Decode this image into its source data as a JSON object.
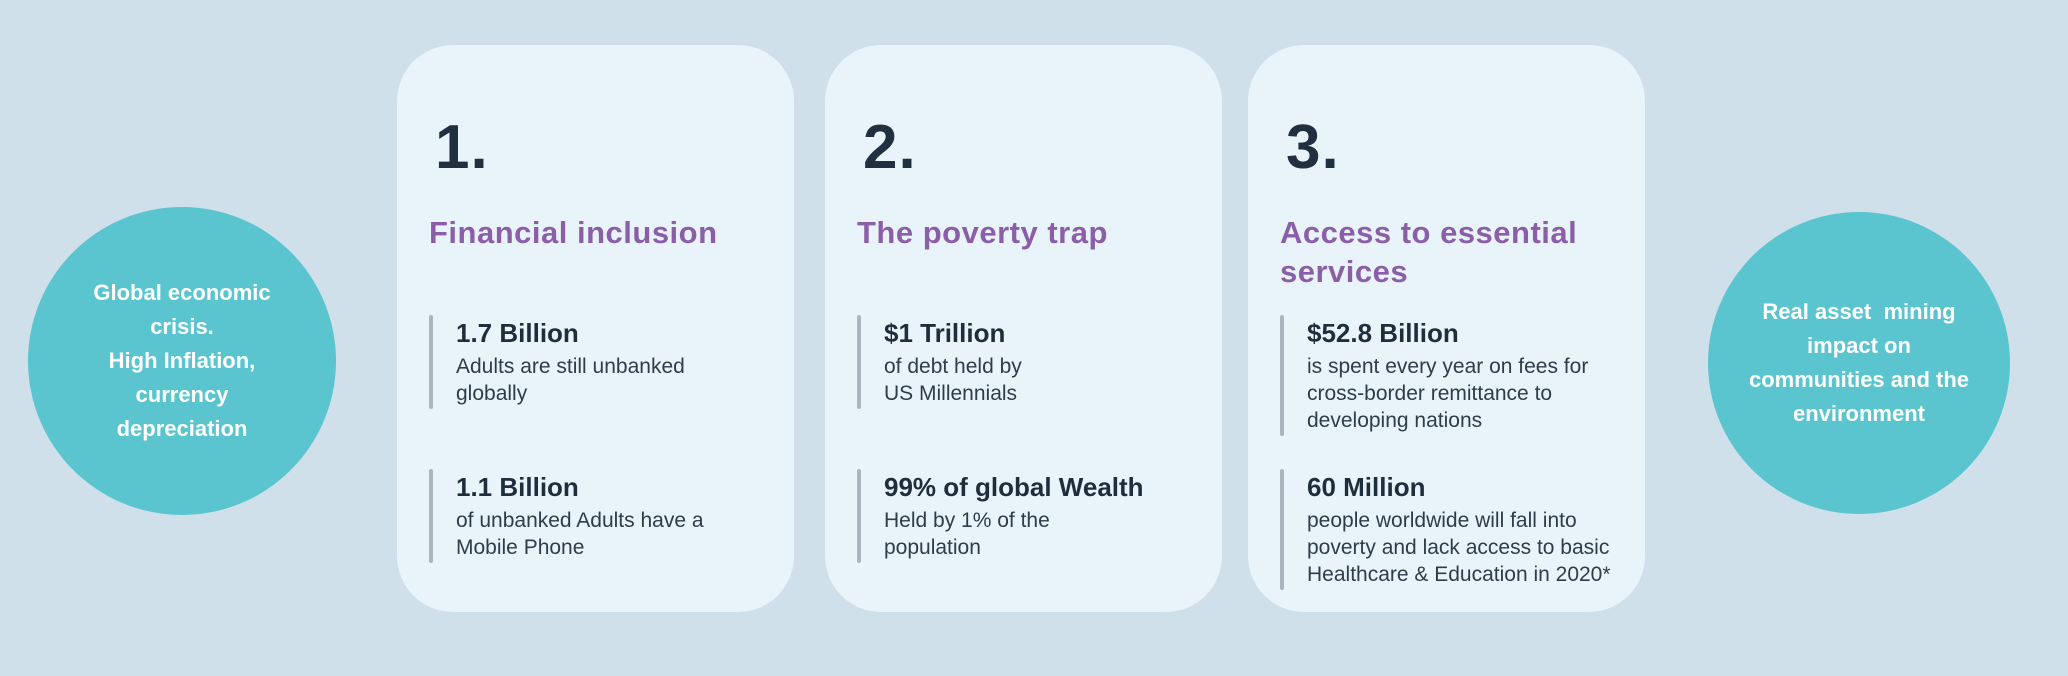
{
  "colors": {
    "page_background": "#cfe0eb",
    "card_background": "#e9f3fa",
    "circle_teal": "#5ac5cf",
    "heading_purple": "#8a5fa8",
    "text_navy": "#21303e",
    "stat_bar_gray": "#a9b6c0",
    "circle_text_white": "#ffffff"
  },
  "left_circle": {
    "text": "Global economic\ncrisis.\nHigh Inflation,\ncurrency\ndepreciation"
  },
  "right_circle": {
    "text": "Real asset  mining\nimpact on\ncommunities and the\nenvironment"
  },
  "cards": [
    {
      "number": "1.",
      "title": "Financial inclusion",
      "stats": [
        {
          "value": "1.7 Billion",
          "description": "Adults are still unbanked\nglobally"
        },
        {
          "value": "1.1 Billion",
          "description": "of unbanked Adults have a\nMobile Phone"
        }
      ]
    },
    {
      "number": "2.",
      "title": "The poverty trap",
      "stats": [
        {
          "value": "$1 Trillion",
          "description": "of debt held by\nUS Millennials"
        },
        {
          "value": "99% of global Wealth",
          "description": "Held by 1% of the\npopulation"
        }
      ]
    },
    {
      "number": "3.",
      "title": "Access to essential\nservices",
      "stats": [
        {
          "value": "$52.8 Billion",
          "description": "is spent every year on fees for\ncross-border remittance to\ndeveloping nations"
        },
        {
          "value": "60 Million",
          "description": "people worldwide will fall into\npoverty and lack access to basic\nHealthcare & Education in 2020*"
        }
      ]
    }
  ]
}
